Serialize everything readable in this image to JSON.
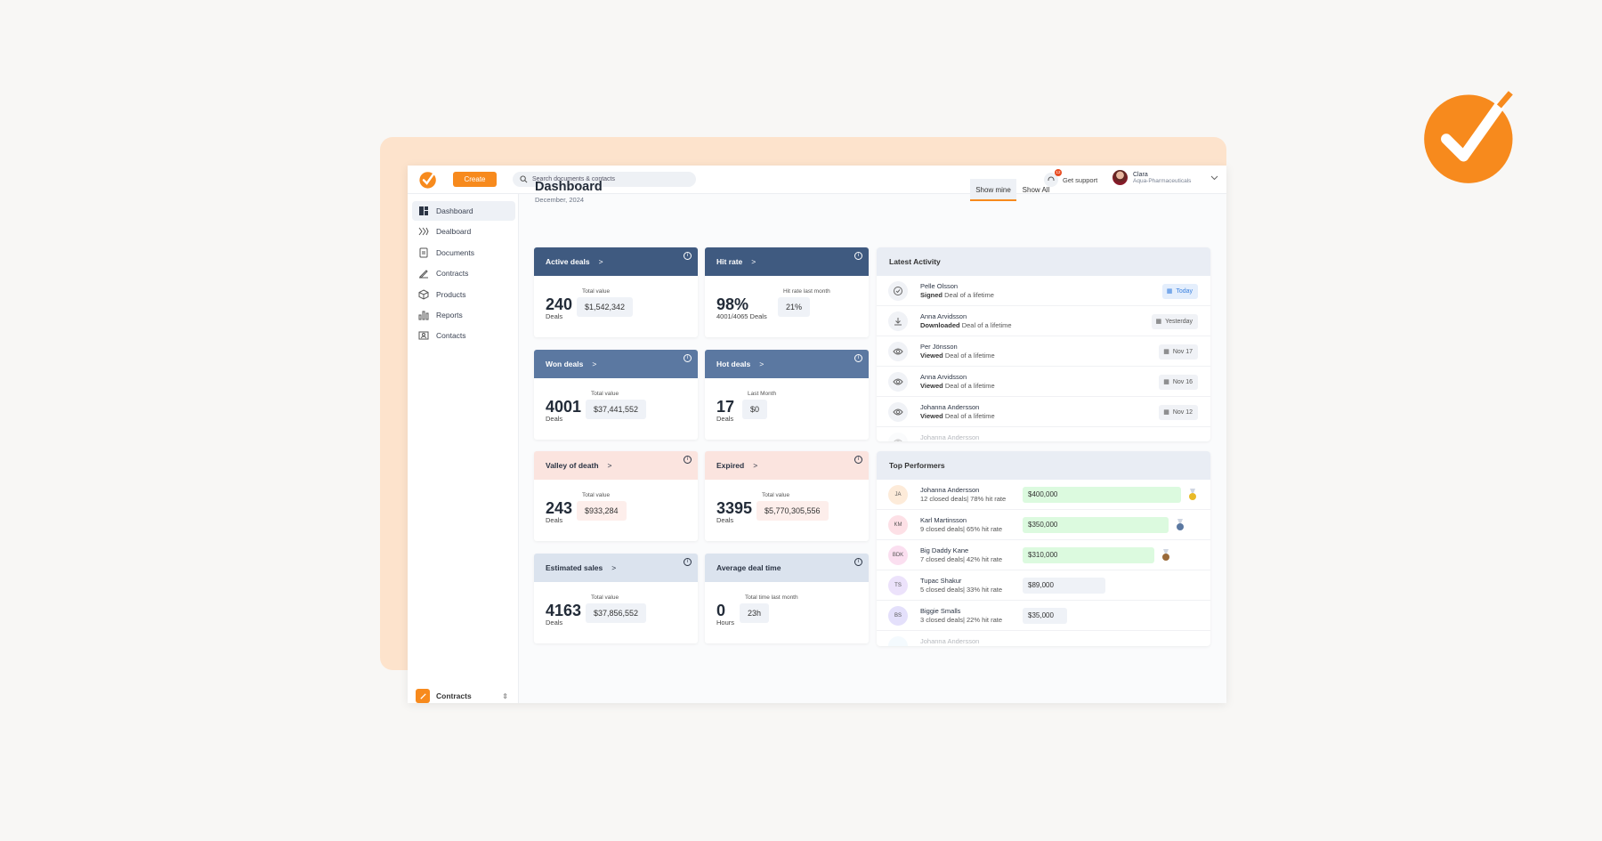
{
  "header": {
    "create_label": "Create",
    "search_placeholder": "Search documents & contacts",
    "support_label": "Get support",
    "support_badge": "12",
    "user_name": "Clara",
    "user_company": "Aqua-Pharmaceuticals"
  },
  "sidebar": {
    "items": [
      {
        "label": "Dashboard",
        "icon": "dashboard-icon",
        "active": true
      },
      {
        "label": "Dealboard",
        "icon": "dealboard-icon"
      },
      {
        "label": "Documents",
        "icon": "document-icon"
      },
      {
        "label": "Contracts",
        "icon": "pen-icon"
      },
      {
        "label": "Products",
        "icon": "box-icon"
      },
      {
        "label": "Reports",
        "icon": "bar-chart-icon"
      },
      {
        "label": "Contacts",
        "icon": "contact-card-icon"
      }
    ],
    "footer_label": "Contracts"
  },
  "main": {
    "title": "Dashboard",
    "date": "December, 2024",
    "toggle": {
      "mine": "Show mine",
      "all": "Show All"
    }
  },
  "cards": [
    {
      "title": "Active deals",
      "value": "240",
      "unit": "Deals",
      "sub_label": "Total value",
      "sub_value": "$1,542,342",
      "style": "dark",
      "arrow": true
    },
    {
      "title": "Hit rate",
      "value": "98%",
      "unit": "4001/4065 Deals",
      "sub_label": "Hit rate last month",
      "sub_value": "21%",
      "style": "dark",
      "arrow": true
    },
    {
      "title": "Won deals",
      "value": "4001",
      "unit": "Deals",
      "sub_label": "Total value",
      "sub_value": "$37,441,552",
      "style": "mid",
      "arrow": true
    },
    {
      "title": "Hot deals",
      "value": "17",
      "unit": "Deals",
      "sub_label": "Last Month",
      "sub_value": "$0",
      "style": "mid",
      "arrow": true
    },
    {
      "title": "Valley of death",
      "value": "243",
      "unit": "Deals",
      "sub_label": "Total value",
      "sub_value": "$933,284",
      "style": "pink",
      "arrow": true
    },
    {
      "title": "Expired",
      "value": "3395",
      "unit": "Deals",
      "sub_label": "Total value",
      "sub_value": "$5,770,305,556",
      "style": "pink",
      "arrow": true
    },
    {
      "title": "Estimated sales",
      "value": "4163",
      "unit": "Deals",
      "sub_label": "Total value",
      "sub_value": "$37,856,552",
      "style": "light",
      "arrow": true
    },
    {
      "title": "Average deal time",
      "value": "0",
      "unit": "Hours",
      "sub_label": "Total time last month",
      "sub_value": "23h",
      "style": "light",
      "arrow": false
    }
  ],
  "activity": {
    "title": "Latest Activity",
    "items": [
      {
        "name": "Pelle Olsson",
        "action": "Signed",
        "object": "Deal of a lifetime",
        "date": "Today",
        "icon": "check-circle-icon"
      },
      {
        "name": "Anna Arvidsson",
        "action": "Downloaded",
        "object": "Deal of a lifetime",
        "date": "Yesterday",
        "icon": "download-icon"
      },
      {
        "name": "Per Jönsson",
        "action": "Viewed",
        "object": "Deal of a lifetime",
        "date": "Nov 17",
        "icon": "eye-icon"
      },
      {
        "name": "Anna Arvidsson",
        "action": "Viewed",
        "object": "Deal of a lifetime",
        "date": "Nov 16",
        "icon": "eye-icon"
      },
      {
        "name": "Johanna Andersson",
        "action": "Viewed",
        "object": "Deal of a lifetime",
        "date": "Nov 12",
        "icon": "eye-icon"
      },
      {
        "name": "Johanna Andersson",
        "action": "",
        "object": "",
        "date": "",
        "icon": "eye-icon"
      }
    ]
  },
  "performers": {
    "title": "Top Performers",
    "items": [
      {
        "initials": "JA",
        "name": "Johanna Andersson",
        "stats": "12 closed deals| 78% hit rate",
        "amount": "$400,000",
        "share": 1.0,
        "medal": "gold",
        "avatar_color": "#fdebd9"
      },
      {
        "initials": "KM",
        "name": "Karl Martinsson",
        "stats": "9 closed deals| 65% hit rate",
        "amount": "$350,000",
        "share": 0.92,
        "medal": "silver",
        "avatar_color": "#fde0e6"
      },
      {
        "initials": "BDK",
        "name": "Big Daddy Kane",
        "stats": "7 closed deals| 42% hit rate",
        "amount": "$310,000",
        "share": 0.83,
        "medal": "bronze",
        "avatar_color": "#fbdff0"
      },
      {
        "initials": "TS",
        "name": "Tupac Shakur",
        "stats": "5 closed deals| 33% hit rate",
        "amount": "$89,000",
        "share": 0.52,
        "medal": "",
        "avatar_color": "#ece2fb"
      },
      {
        "initials": "BS",
        "name": "Biggie Smalls",
        "stats": "3 closed deals| 22% hit rate",
        "amount": "$35,000",
        "share": 0.28,
        "medal": "",
        "avatar_color": "#e4e0fb"
      },
      {
        "initials": "",
        "name": "Johanna Andersson",
        "stats": "",
        "amount": "",
        "share": 0,
        "medal": "",
        "avatar_color": "#e0f2fb"
      }
    ]
  },
  "colors": {
    "accent": "#f78a1d",
    "card_dark": "#3f5a80",
    "card_mid": "#5b78a1",
    "card_pink": "#fbe4df",
    "card_light": "#dbe3ee",
    "bar_green": "#dcfadf"
  }
}
